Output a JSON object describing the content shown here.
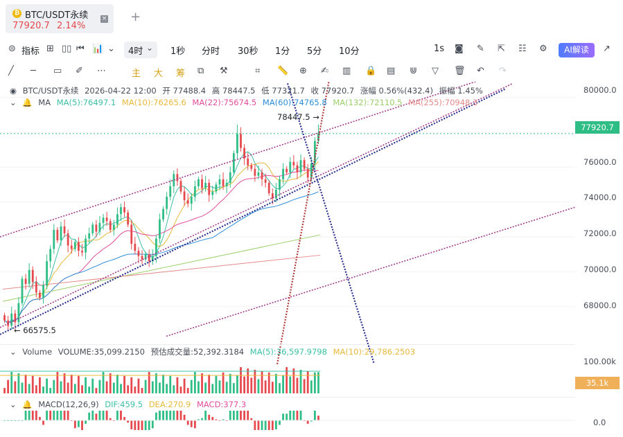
{
  "tab": {
    "title": "BTC/USDT永续",
    "price": "77920.7",
    "change": "2.14%",
    "close": "×",
    "add": "+"
  },
  "toolbar1": {
    "indicators": "指标",
    "intervals": [
      "1秒",
      "分时",
      "30秒",
      "1分",
      "5分",
      "10分"
    ],
    "selected_interval": "4时",
    "right_label": "1s",
    "ai_label": "AI解读"
  },
  "toolbar2": {
    "main_label": "主",
    "big_label": "大",
    "chip_label": "筹"
  },
  "legend": {
    "symbol": "BTC/USDT永续",
    "time": "2026-04-22 12:00",
    "open": "开 77488.4",
    "high": "高 78447.5",
    "low": "低 77321.7",
    "close": "收 77920.7",
    "change": "涨幅 0.56%(432.4)",
    "amplitude": "振幅 1.45%"
  },
  "ma_legend": {
    "label": "MA",
    "items": [
      {
        "text": "MA(5):76497.1",
        "color": "#3cc0a5"
      },
      {
        "text": "MA(10):76265.6",
        "color": "#e8b93c"
      },
      {
        "text": "MA(22):75674.5",
        "color": "#e24d9c"
      },
      {
        "text": "MA(60):74765.8",
        "color": "#2e8fd8"
      },
      {
        "text": "MA(132):72110.5",
        "color": "#9ad06a"
      },
      {
        "text": "MA(255):70948.3",
        "color": "#e58a8a"
      }
    ]
  },
  "volume_legend": {
    "label": "Volume",
    "volume": "VOLUME:35,099.2150",
    "estimate": "预估成交量:52,392.3184",
    "ma5": "MA(5):36,597.9798",
    "ma10": "MA(10):29,786.2503"
  },
  "macd_legend": {
    "label": "MACD(12,26,9)",
    "dif": "DIF:459.5",
    "dea": "DEA:270.9",
    "macd": "MACD:377.3"
  },
  "price_axis": [
    "80000.0",
    "78000.0",
    "76000.0",
    "74000.0",
    "72000.0",
    "70000.0",
    "68000.0"
  ],
  "volume_axis": [
    "100.00k"
  ],
  "macd_axis": [
    "0.0"
  ],
  "current_price_tag": "77920.7",
  "volume_tag": "35.1k",
  "high_annotation": "78447.5 →",
  "low_annotation": "← 66575.5",
  "colors": {
    "up": "#2ebd85",
    "down": "#e5484d",
    "accent": "#f0b90b"
  },
  "chart_data": {
    "type": "candlestick",
    "symbol": "BTC/USDT永续",
    "interval": "4时",
    "ylim": [
      66000,
      80500
    ],
    "last": {
      "open": 77488.4,
      "high": 78447.5,
      "low": 77321.7,
      "close": 77920.7
    },
    "marked_high": 78447.5,
    "marked_low": 66575.5,
    "ma": {
      "MA5": 76497.1,
      "MA10": 76265.6,
      "MA22": 75674.5,
      "MA60": 74765.8,
      "MA132": 72110.5,
      "MA255": 70948.3
    },
    "closes": [
      67200,
      66900,
      67600,
      67100,
      68200,
      69600,
      69300,
      70100,
      69400,
      68800,
      68500,
      69200,
      70600,
      71300,
      72400,
      71800,
      72600,
      72200,
      71500,
      71300,
      71700,
      71200,
      71100,
      71900,
      72200,
      72700,
      72300,
      72800,
      73100,
      72900,
      72400,
      72700,
      73300,
      73700,
      73400,
      72700,
      71600,
      71200,
      70900,
      70700,
      71000,
      70600,
      70900,
      71900,
      73000,
      73600,
      74300,
      74900,
      75600,
      75200,
      74600,
      74100,
      73900,
      74300,
      74900,
      75300,
      74800,
      75100,
      74400,
      74600,
      75000,
      75300,
      74900,
      75100,
      75700,
      76800,
      77900,
      77100,
      76500,
      76100,
      75900,
      75500,
      75700,
      75300,
      75100,
      74500,
      74200,
      74700,
      75300,
      75900,
      75700,
      76300,
      76100,
      75700,
      76400,
      75900,
      75400,
      76200,
      77500,
      77920.7
    ],
    "volume_ma5": 36597.9798,
    "volume_ma10": 29786.2503,
    "volume_last": 35099.215,
    "macd": {
      "DIF": 459.5,
      "DEA": 270.9,
      "MACD": 377.3
    }
  }
}
